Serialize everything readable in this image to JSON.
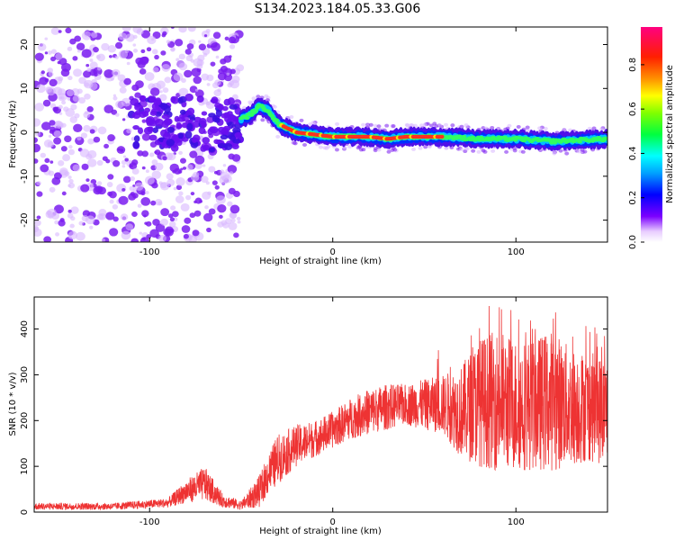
{
  "page_title": "S134.2023.184.05.33.G06",
  "chart_data": [
    {
      "type": "heatmap",
      "xlabel": "Height of straight line (km)",
      "ylabel": "Frequency (Hz)",
      "xlim": [
        -163,
        150
      ],
      "ylim": [
        -25,
        24
      ],
      "x_ticks": [
        -100,
        0,
        100
      ],
      "y_ticks": [
        -20,
        -10,
        0,
        10,
        20
      ],
      "colorbar": {
        "label": "Normalized spectral amplitude",
        "range": [
          0,
          0.97
        ],
        "ticks": [
          0.0,
          0.2,
          0.4,
          0.6,
          0.8
        ]
      },
      "ridge": {
        "description_points_x": [
          -50,
          -45,
          -40,
          -35,
          -30,
          -25,
          -20,
          -10,
          0,
          10,
          20,
          30,
          40,
          50,
          60,
          80,
          100,
          120,
          150
        ],
        "frequency_hz": [
          3,
          4,
          6,
          5,
          2,
          1,
          0,
          -0.5,
          -1,
          -1,
          -1,
          -1.5,
          -1,
          -1,
          -1,
          -1.5,
          -1.5,
          -2,
          -1.5
        ]
      }
    },
    {
      "type": "line",
      "xlabel": "Height of straight line (km)",
      "ylabel": "SNR (10 * v/v)",
      "xlim": [
        -163,
        150
      ],
      "ylim": [
        0,
        470
      ],
      "x_ticks": [
        -100,
        0,
        100
      ],
      "y_ticks": [
        0,
        100,
        200,
        300,
        400
      ],
      "series": [
        {
          "color": "#ee3333",
          "envelope_x": [
            -163,
            -120,
            -90,
            -80,
            -70,
            -60,
            -50,
            -40,
            -35,
            -30,
            -20,
            -10,
            0,
            10,
            20,
            30,
            40,
            50,
            60,
            70,
            80,
            90,
            100,
            110,
            120,
            130,
            140,
            150
          ],
          "envelope_low": [
            5,
            5,
            10,
            20,
            25,
            10,
            5,
            10,
            40,
            60,
            100,
            120,
            140,
            160,
            170,
            180,
            190,
            180,
            170,
            120,
            100,
            90,
            90,
            90,
            90,
            100,
            110,
            100
          ],
          "envelope_high": [
            20,
            20,
            30,
            70,
            100,
            40,
            25,
            80,
            130,
            170,
            190,
            200,
            220,
            250,
            270,
            280,
            280,
            290,
            300,
            320,
            380,
            400,
            380,
            380,
            400,
            360,
            350,
            340
          ]
        }
      ]
    }
  ],
  "colors": {
    "line": "#ee3333"
  }
}
